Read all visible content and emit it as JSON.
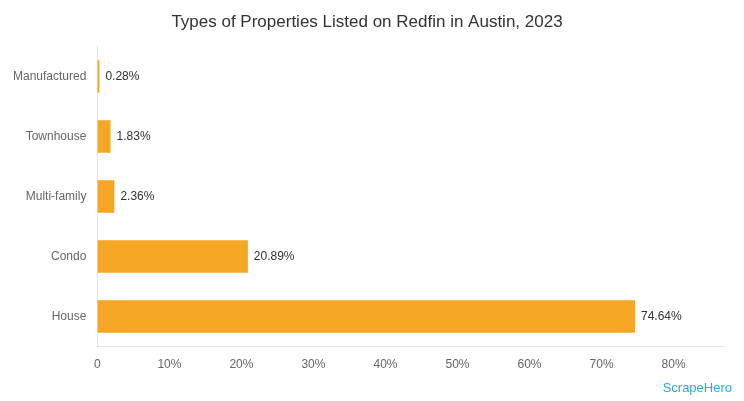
{
  "chart_data": {
    "type": "bar",
    "orientation": "horizontal",
    "title": "Types of Properties Listed on Redfin in Austin, 2023",
    "categories": [
      "House",
      "Condo",
      "Multi-family",
      "Townhouse",
      "Manufactured"
    ],
    "values": [
      74.64,
      20.89,
      2.36,
      1.83,
      0.28
    ],
    "value_labels": [
      "74.64%",
      "20.89%",
      "2.36%",
      "1.83%",
      "0.28%"
    ],
    "data_labels": true,
    "color": "#F5A623",
    "xlim": [
      0,
      87
    ],
    "xticks": [
      0,
      {
        "value": 10,
        "label": "10%"
      },
      {
        "value": 20,
        "label": "20%"
      },
      {
        "value": 30,
        "label": "30%"
      },
      {
        "value": 40,
        "label": "40%"
      },
      {
        "value": 50,
        "label": "50%"
      },
      {
        "value": 60,
        "label": "60%"
      },
      {
        "value": 70,
        "label": "70%"
      },
      {
        "value": 80,
        "label": "80%"
      }
    ],
    "grid": false,
    "annotations": [
      {
        "text": "ScrapeHero",
        "color": "#29ABE2"
      }
    ]
  }
}
